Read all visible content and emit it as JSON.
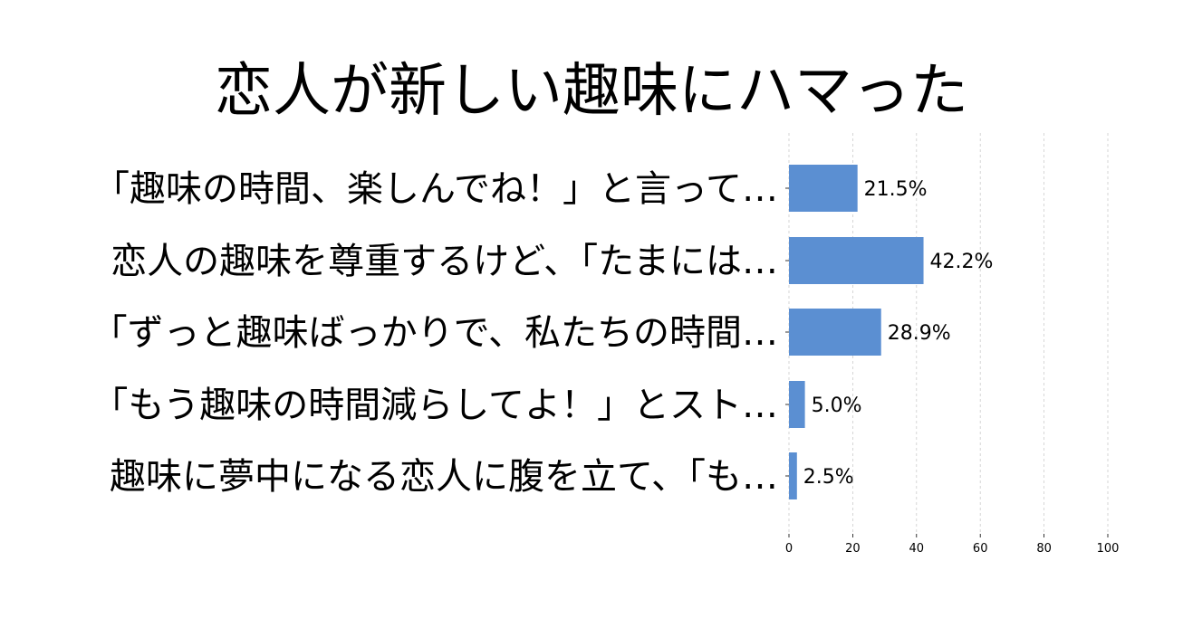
{
  "chart_data": {
    "type": "bar",
    "orientation": "horizontal",
    "title": "恋人が新しい趣味にハマった",
    "categories": [
      "「趣味の時間、楽しんでね！」と言って…",
      "恋人の趣味を尊重するけど、「たまには…",
      "「ずっと趣味ばっかりで、私たちの時間…",
      "「もう趣味の時間減らしてよ！」とスト…",
      "趣味に夢中になる恋人に腹を立て、「も…"
    ],
    "values": [
      21.5,
      42.2,
      28.9,
      5.0,
      2.5
    ],
    "value_labels": [
      "21.5%",
      "42.2%",
      "28.9%",
      "5.0%",
      "2.5%"
    ],
    "xlim": [
      0,
      100
    ],
    "xticks": [
      0,
      20,
      40,
      60,
      80,
      100
    ],
    "xtick_labels": [
      "0",
      "20",
      "40",
      "60",
      "80",
      "100"
    ],
    "grid": true,
    "bar_color": "#5b8fd2"
  }
}
